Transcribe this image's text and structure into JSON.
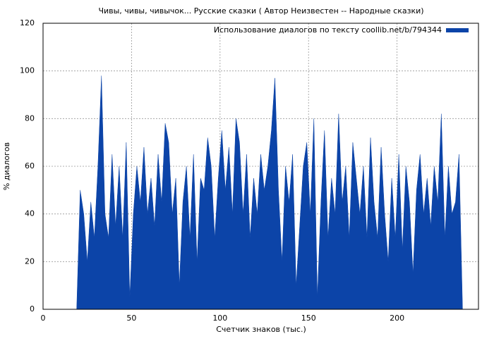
{
  "chart_data": {
    "type": "area",
    "title": "Чивы, чивы, чивычок... Русские сказки ( Автор Неизвестен -- Народные сказки)",
    "x_label": "Счетчик знаков (тыс.)",
    "y_label": "% диалогов",
    "x": [
      19,
      21,
      23,
      25,
      27,
      29,
      31,
      33,
      35,
      37,
      39,
      41,
      43,
      45,
      47,
      49,
      51,
      53,
      55,
      57,
      59,
      61,
      63,
      65,
      67,
      69,
      71,
      73,
      75,
      77,
      79,
      81,
      83,
      85,
      87,
      89,
      91,
      93,
      95,
      97,
      99,
      101,
      103,
      105,
      107,
      109,
      111,
      113,
      115,
      117,
      119,
      121,
      123,
      125,
      127,
      129,
      131,
      133,
      135,
      137,
      139,
      141,
      143,
      145,
      147,
      149,
      151,
      153,
      155,
      157,
      159,
      161,
      163,
      165,
      167,
      169,
      171,
      173,
      175,
      177,
      179,
      181,
      183,
      185,
      187,
      189,
      191,
      193,
      195,
      197,
      199,
      201,
      203,
      205,
      207,
      209,
      211,
      213,
      215,
      217,
      219,
      221,
      223,
      225,
      227,
      229,
      231,
      233,
      235,
      237
    ],
    "series": [
      {
        "name": "Использование диалогов по тексту coollib.net/b/794344",
        "color": "#0c44a8",
        "values": [
          0,
          50,
          40,
          20,
          45,
          30,
          60,
          98,
          40,
          30,
          65,
          35,
          60,
          30,
          70,
          5,
          40,
          60,
          45,
          68,
          40,
          55,
          35,
          65,
          45,
          78,
          70,
          40,
          55,
          10,
          45,
          60,
          30,
          65,
          20,
          55,
          50,
          72,
          60,
          30,
          55,
          75,
          50,
          68,
          40,
          80,
          70,
          40,
          65,
          30,
          55,
          40,
          65,
          50,
          60,
          75,
          97,
          50,
          20,
          60,
          45,
          65,
          10,
          35,
          60,
          70,
          40,
          80,
          5,
          45,
          75,
          30,
          55,
          40,
          82,
          45,
          60,
          30,
          70,
          55,
          40,
          60,
          30,
          72,
          45,
          30,
          68,
          40,
          20,
          55,
          30,
          65,
          25,
          60,
          45,
          15,
          50,
          65,
          40,
          55,
          35,
          60,
          45,
          82,
          30,
          60,
          40,
          45,
          65,
          0
        ]
      }
    ],
    "xlim": [
      0,
      246
    ],
    "ylim": [
      0,
      120
    ],
    "xticks": [
      0,
      50,
      100,
      150,
      200
    ],
    "yticks": [
      0,
      20,
      40,
      60,
      80,
      100,
      120
    ],
    "grid": true,
    "legend": "upper-right"
  }
}
